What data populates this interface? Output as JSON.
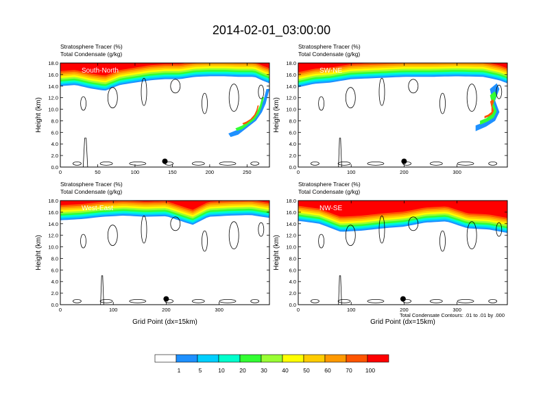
{
  "title": "2014-02-01_03:00:00",
  "footnote": "Total Condensate Contours: .01 to .01 by .000",
  "colors": {
    "levels": [
      "#ffffff",
      "#1e90ff",
      "#00cfff",
      "#00ffcc",
      "#33ff33",
      "#99ff33",
      "#ffff00",
      "#ffcc00",
      "#ff9900",
      "#ff5500",
      "#ff0000"
    ],
    "contour": "#000000",
    "marker": "#000000"
  },
  "colorbar": {
    "labels": [
      "1",
      "5",
      "10",
      "20",
      "30",
      "40",
      "50",
      "60",
      "70",
      "100"
    ]
  },
  "chart_data": [
    {
      "type": "heatmap",
      "label": "South-North",
      "left_title_1": "Stratosphere Tracer   (%)",
      "left_title_2": "Total Condensate   (g/kg)",
      "ylabel": "Height (km)",
      "xlabel": "",
      "xlim": [
        0,
        280
      ],
      "ylim": [
        0,
        18
      ],
      "xticks": [
        "0",
        "50",
        "100",
        "150",
        "200",
        "250"
      ],
      "xtick_values": [
        0,
        50,
        100,
        150,
        200,
        250
      ],
      "yticks": [
        "0.0",
        "2.0",
        "4.0",
        "6.0",
        "8.0",
        "10.0",
        "12.0",
        "14.0",
        "16.0",
        "18.0"
      ],
      "tracer_base_km": [
        [
          0,
          14.0
        ],
        [
          20,
          14.2
        ],
        [
          40,
          13.6
        ],
        [
          60,
          13.2
        ],
        [
          80,
          14.2
        ],
        [
          100,
          14.6
        ],
        [
          120,
          15.0
        ],
        [
          140,
          15.2
        ],
        [
          160,
          15.2
        ],
        [
          180,
          15.6
        ],
        [
          200,
          15.7
        ],
        [
          220,
          15.7
        ],
        [
          240,
          15.6
        ],
        [
          260,
          15.6
        ],
        [
          270,
          15.0
        ],
        [
          280,
          14.5
        ]
      ],
      "intrusion": [
        [
          280,
          13.5
        ],
        [
          275,
          11.0
        ],
        [
          270,
          9.5
        ],
        [
          262,
          8.0
        ],
        [
          250,
          6.8
        ],
        [
          238,
          5.6
        ],
        [
          228,
          5.2
        ],
        [
          225,
          5.8
        ],
        [
          238,
          6.5
        ],
        [
          252,
          7.6
        ],
        [
          265,
          9.5
        ],
        [
          272,
          11.5
        ],
        [
          276,
          13.5
        ]
      ],
      "marker": [
        140,
        1.0
      ]
    },
    {
      "type": "heatmap",
      "label": "SW-NE",
      "left_title_1": "Stratosphere Tracer   (%)",
      "left_title_2": "Total Condensate   (g/kg)",
      "ylabel": "Height (km)",
      "xlabel": "",
      "xlim": [
        0,
        395
      ],
      "ylim": [
        0,
        18
      ],
      "xticks": [
        "0",
        "100",
        "200",
        "300"
      ],
      "xtick_values": [
        0,
        100,
        200,
        300
      ],
      "yticks": [
        "0.0",
        "2.0",
        "4.0",
        "6.0",
        "8.0",
        "10.0",
        "12.0",
        "14.0",
        "16.0",
        "18.0"
      ],
      "tracer_base_km": [
        [
          0,
          13.8
        ],
        [
          30,
          14.4
        ],
        [
          60,
          14.6
        ],
        [
          100,
          15.2
        ],
        [
          150,
          15.4
        ],
        [
          200,
          15.6
        ],
        [
          250,
          15.6
        ],
        [
          300,
          15.7
        ],
        [
          350,
          15.6
        ],
        [
          380,
          15.0
        ],
        [
          395,
          14.5
        ]
      ],
      "intrusion": [
        [
          380,
          13.5
        ],
        [
          372,
          11.5
        ],
        [
          380,
          9.5
        ],
        [
          372,
          8.0
        ],
        [
          355,
          7.0
        ],
        [
          335,
          6.2
        ],
        [
          335,
          7.2
        ],
        [
          352,
          7.8
        ],
        [
          368,
          9.0
        ],
        [
          368,
          11.0
        ],
        [
          362,
          13.5
        ],
        [
          375,
          14.5
        ]
      ],
      "marker": [
        200,
        1.0
      ]
    },
    {
      "type": "heatmap",
      "label": "West-East",
      "left_title_1": "Stratosphere Tracer   (%)",
      "left_title_2": "Total Condensate   (g/kg)",
      "ylabel": "Height (km)",
      "xlabel": "Grid Point (dx=15km)",
      "xlim": [
        0,
        395
      ],
      "ylim": [
        0,
        18
      ],
      "xticks": [
        "0",
        "100",
        "200",
        "300"
      ],
      "xtick_values": [
        0,
        100,
        200,
        300
      ],
      "yticks": [
        "0.0",
        "2.0",
        "4.0",
        "6.0",
        "8.0",
        "10.0",
        "12.0",
        "14.0",
        "16.0",
        "18.0"
      ],
      "tracer_base_km": [
        [
          0,
          14.6
        ],
        [
          40,
          14.8
        ],
        [
          80,
          15.2
        ],
        [
          120,
          15.4
        ],
        [
          160,
          15.2
        ],
        [
          200,
          15.3
        ],
        [
          250,
          13.8
        ],
        [
          280,
          15.2
        ],
        [
          320,
          15.4
        ],
        [
          360,
          15.5
        ],
        [
          395,
          15.0
        ]
      ],
      "intrusion": [],
      "marker": [
        200,
        1.0
      ]
    },
    {
      "type": "heatmap",
      "label": "NW-SE",
      "left_title_1": "Stratosphere Tracer   (%)",
      "left_title_2": "Total Condensate   (g/kg)",
      "ylabel": "Height (km)",
      "xlabel": "Grid Point (dx=15km)",
      "xlim": [
        0,
        395
      ],
      "ylim": [
        0,
        18
      ],
      "xticks": [
        "0",
        "100",
        "200",
        "300"
      ],
      "xtick_values": [
        0,
        100,
        200,
        300
      ],
      "yticks": [
        "0.0",
        "2.0",
        "4.0",
        "6.0",
        "8.0",
        "10.0",
        "12.0",
        "14.0",
        "16.0",
        "18.0"
      ],
      "tracer_base_km": [
        [
          0,
          14.5
        ],
        [
          40,
          14.0
        ],
        [
          80,
          12.6
        ],
        [
          120,
          12.8
        ],
        [
          160,
          13.2
        ],
        [
          200,
          13.5
        ],
        [
          240,
          14.2
        ],
        [
          280,
          14.4
        ],
        [
          320,
          13.2
        ],
        [
          360,
          13.0
        ],
        [
          395,
          12.4
        ]
      ],
      "intrusion": [],
      "marker": [
        198,
        1.0
      ]
    }
  ]
}
